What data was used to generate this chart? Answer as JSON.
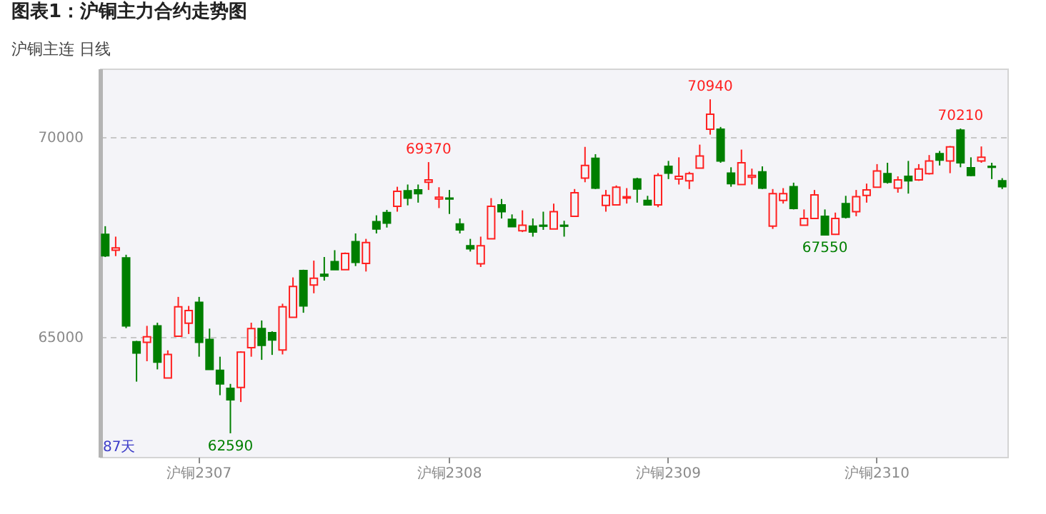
{
  "chart_data": {
    "type": "candlestick",
    "title": "图表1：沪铜主力合约走势图",
    "subtitle": "沪铜主连  日线",
    "categories": [
      null,
      null,
      null,
      null,
      null,
      null,
      null,
      null,
      null,
      "沪铜2307",
      null,
      null,
      null,
      null,
      null,
      null,
      null,
      null,
      null,
      null,
      null,
      null,
      null,
      null,
      null,
      null,
      null,
      null,
      null,
      null,
      null,
      null,
      null,
      "沪铜2308",
      null,
      null,
      null,
      null,
      null,
      null,
      null,
      null,
      null,
      null,
      null,
      null,
      null,
      null,
      null,
      null,
      null,
      null,
      null,
      null,
      "沪铜2309",
      null,
      null,
      null,
      null,
      null,
      null,
      null,
      null,
      null,
      null,
      null,
      null,
      null,
      null,
      null,
      null,
      null,
      null,
      null,
      "沪铜2310",
      null,
      null,
      null,
      null,
      null,
      null,
      null,
      null,
      null,
      null,
      null,
      null
    ],
    "ohlc": [
      [
        67564,
        67768,
        66997,
        67031
      ],
      [
        67167,
        67507,
        67020,
        67224
      ],
      [
        66975,
        67054,
        65219,
        65276
      ],
      [
        64879,
        64901,
        63882,
        64596
      ],
      [
        64867,
        65276,
        64392,
        65004
      ],
      [
        65276,
        65355,
        64188,
        64369
      ],
      [
        63972,
        64664,
        63972,
        64562
      ],
      [
        65015,
        66000,
        65015,
        65751
      ],
      [
        65344,
        65774,
        65072,
        65661
      ],
      [
        65864,
        66000,
        64505,
        64867
      ],
      [
        64935,
        65208,
        64188,
        64188
      ],
      [
        64165,
        64505,
        63542,
        63825
      ],
      [
        63712,
        63825,
        62590,
        63429
      ],
      [
        63735,
        64641,
        63372,
        64618
      ],
      [
        64732,
        65355,
        64505,
        65208
      ],
      [
        65208,
        65411,
        64426,
        64788
      ],
      [
        65106,
        65140,
        64550,
        64924
      ],
      [
        64675,
        65830,
        64562,
        65751
      ],
      [
        65491,
        66488,
        65491,
        66261
      ],
      [
        66658,
        66680,
        65604,
        65774
      ],
      [
        66295,
        66907,
        66091,
        66465
      ],
      [
        66567,
        66998,
        66408,
        66522
      ],
      [
        66884,
        67168,
        66680,
        66680
      ],
      [
        66680,
        67111,
        66680,
        67088
      ],
      [
        67383,
        67587,
        66771,
        66862
      ],
      [
        66839,
        67451,
        66635,
        67360
      ],
      [
        67881,
        68040,
        67587,
        67700
      ],
      [
        68108,
        68176,
        67734,
        67847
      ],
      [
        68266,
        68754,
        68131,
        68640
      ],
      [
        68652,
        68810,
        68289,
        68470
      ],
      [
        68674,
        68810,
        68357,
        68584
      ],
      [
        68867,
        69370,
        68674,
        68924
      ],
      [
        68448,
        68742,
        68221,
        68493
      ],
      [
        68470,
        68674,
        68074,
        68448
      ],
      [
        67825,
        67961,
        67587,
        67677
      ],
      [
        67281,
        67451,
        67134,
        67201
      ],
      [
        66828,
        67507,
        66748,
        67281
      ],
      [
        67451,
        68470,
        67451,
        68266
      ],
      [
        68300,
        68448,
        67961,
        68131
      ],
      [
        67938,
        68063,
        67757,
        67757
      ],
      [
        67655,
        68165,
        67621,
        67791
      ],
      [
        67768,
        67961,
        67507,
        67621
      ],
      [
        67791,
        68131,
        67677,
        67768
      ],
      [
        67700,
        68334,
        67700,
        68131
      ],
      [
        67791,
        67904,
        67507,
        67768
      ],
      [
        68017,
        68697,
        68017,
        68606
      ],
      [
        68969,
        69751,
        68867,
        69286
      ],
      [
        69467,
        69569,
        68697,
        68720
      ],
      [
        68289,
        68674,
        68131,
        68538
      ],
      [
        68300,
        68787,
        68300,
        68742
      ],
      [
        68470,
        68720,
        68334,
        68504
      ],
      [
        68946,
        68980,
        68357,
        68697
      ],
      [
        68414,
        68527,
        68300,
        68300
      ],
      [
        68300,
        69094,
        68243,
        69037
      ],
      [
        69263,
        69400,
        68946,
        69094
      ],
      [
        68946,
        69490,
        68810,
        69014
      ],
      [
        68901,
        69128,
        68697,
        69082
      ],
      [
        69218,
        69807,
        69218,
        69524
      ],
      [
        70193,
        70940,
        70057,
        70567
      ],
      [
        70193,
        70249,
        69354,
        69400
      ],
      [
        69094,
        69241,
        68754,
        68833
      ],
      [
        68810,
        69683,
        68810,
        69354
      ],
      [
        68992,
        69207,
        68810,
        69037
      ],
      [
        69128,
        69264,
        68697,
        68720
      ],
      [
        67768,
        68697,
        67700,
        68584
      ],
      [
        68414,
        68720,
        68334,
        68584
      ],
      [
        68754,
        68856,
        68187,
        68210
      ],
      [
        67791,
        68187,
        67791,
        67961
      ],
      [
        67961,
        68674,
        67961,
        68550
      ],
      [
        68017,
        68187,
        67550,
        67550
      ],
      [
        67564,
        68108,
        67550,
        67961
      ],
      [
        68334,
        68527,
        67961,
        67994
      ],
      [
        68131,
        68674,
        68017,
        68504
      ],
      [
        68538,
        68833,
        68357,
        68674
      ],
      [
        68742,
        69320,
        68742,
        69150
      ],
      [
        69082,
        69354,
        68833,
        68867
      ],
      [
        68720,
        69014,
        68606,
        68924
      ],
      [
        69014,
        69400,
        68584,
        68901
      ],
      [
        68924,
        69320,
        68901,
        69196
      ],
      [
        69082,
        69547,
        69060,
        69400
      ],
      [
        69581,
        69649,
        69286,
        69422
      ],
      [
        69400,
        69773,
        69094,
        69751
      ],
      [
        70170,
        70210,
        69241,
        69354
      ],
      [
        69230,
        69490,
        69020,
        69037
      ],
      [
        69400,
        69762,
        69354,
        69490
      ],
      [
        69264,
        69354,
        68946,
        69241
      ],
      [
        68901,
        68969,
        68697,
        68754
      ]
    ],
    "colors": [
      "#007f00",
      "#ff2020",
      "#007f00",
      "#007f00",
      "#ff2020",
      "#007f00",
      "#ff2020",
      "#ff2020",
      "#ff2020",
      "#007f00",
      "#007f00",
      "#007f00",
      "#007f00",
      "#ff2020",
      "#ff2020",
      "#007f00",
      "#007f00",
      "#ff2020",
      "#ff2020",
      "#007f00",
      "#ff2020",
      "#007f00",
      "#007f00",
      "#ff2020",
      "#007f00",
      "#ff2020",
      "#007f00",
      "#007f00",
      "#ff2020",
      "#007f00",
      "#007f00",
      "#ff2020",
      "#ff2020",
      "#007f00",
      "#007f00",
      "#007f00",
      "#ff2020",
      "#ff2020",
      "#007f00",
      "#007f00",
      "#ff2020",
      "#007f00",
      "#007f00",
      "#ff2020",
      "#007f00",
      "#ff2020",
      "#ff2020",
      "#007f00",
      "#ff2020",
      "#ff2020",
      "#ff2020",
      "#007f00",
      "#007f00",
      "#ff2020",
      "#007f00",
      "#ff2020",
      "#ff2020",
      "#ff2020",
      "#ff2020",
      "#007f00",
      "#007f00",
      "#ff2020",
      "#ff2020",
      "#007f00",
      "#ff2020",
      "#ff2020",
      "#007f00",
      "#ff2020",
      "#ff2020",
      "#007f00",
      "#ff2020",
      "#007f00",
      "#ff2020",
      "#ff2020",
      "#ff2020",
      "#007f00",
      "#ff2020",
      "#007f00",
      "#ff2020",
      "#ff2020",
      "#007f00",
      "#ff2020",
      "#007f00",
      "#007f00",
      "#ff2020",
      "#007f00",
      "#007f00"
    ],
    "ylim": [
      62000,
      71710
    ],
    "yticks": [
      65000,
      70000
    ],
    "grid": "y",
    "annotations": [
      "87天",
      {
        "text": "69370",
        "y": 69370
      },
      {
        "text": "70940",
        "y": 70940
      },
      {
        "text": "70210",
        "y": 70210
      },
      {
        "text": "67550",
        "y": 67550
      },
      {
        "text": "62590",
        "y": 62590
      }
    ]
  }
}
